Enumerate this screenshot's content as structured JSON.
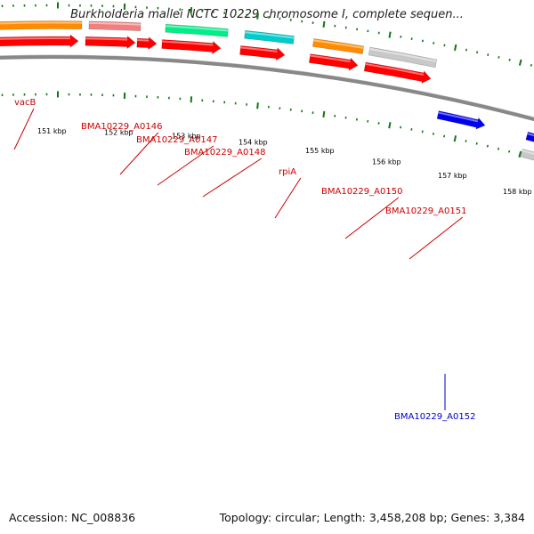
{
  "title": "Burkholderia mallei NCTC 10229 chromosome I, complete sequen...",
  "footer": {
    "accession": "Accession: NC_008836",
    "summary": "Topology: circular; Length: 3,458,208 bp; Genes: 3,384"
  },
  "colors": {
    "backbone": "#888888",
    "tick": "#117711",
    "forward_label": "#cc0000",
    "reverse_label": "#0000cc"
  },
  "tick_labels": [
    "151 kbp",
    "152 kbp",
    "153 kbp",
    "154 kbp",
    "155 kbp",
    "156 kbp",
    "157 kbp",
    "158 kbp"
  ],
  "genes": [
    {
      "label": "vacB",
      "color": "#ff8c00",
      "strand": "forward"
    },
    {
      "label": "BMA10229_A0146",
      "color": "#f08080",
      "strand": "forward"
    },
    {
      "label": "BMA10229_A0147",
      "color": "#ff0000",
      "strand": "forward"
    },
    {
      "label": "BMA10229_A0148",
      "color": "#00ee88",
      "strand": "forward"
    },
    {
      "label": "rpiA",
      "color": "#00cccc",
      "strand": "forward"
    },
    {
      "label": "BMA10229_A0150",
      "color": "#ff8c00",
      "strand": "forward"
    },
    {
      "label": "BMA10229_A0151",
      "color": "#c8c8c8",
      "strand": "forward"
    },
    {
      "label": "BMA10229_A0152",
      "color": "#0000ee",
      "strand": "reverse"
    }
  ]
}
